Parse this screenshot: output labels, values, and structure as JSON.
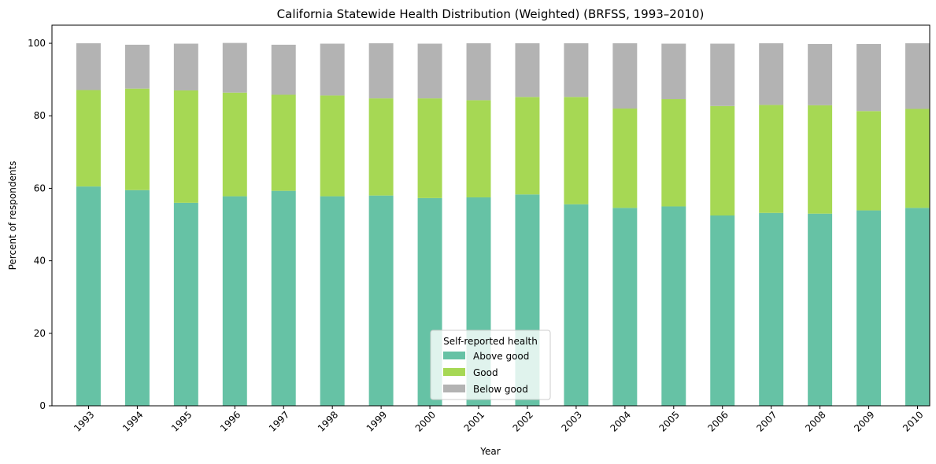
{
  "chart_data": {
    "type": "bar",
    "stacked": true,
    "title": "California Statewide Health Distribution (Weighted) (BRFSS, 1993–2010)",
    "xlabel": "Year",
    "ylabel": "Percent of respondents",
    "ylim": [
      0,
      105
    ],
    "yticks": [
      0,
      20,
      40,
      60,
      80,
      100
    ],
    "grid": false,
    "legend": {
      "title": "Self-reported health",
      "placement": "bottom-center"
    },
    "categories": [
      "1993",
      "1994",
      "1995",
      "1996",
      "1997",
      "1998",
      "1999",
      "2000",
      "2001",
      "2002",
      "2003",
      "2004",
      "2005",
      "2006",
      "2007",
      "2008",
      "2009",
      "2010"
    ],
    "series": [
      {
        "name": "Above good",
        "color": "#66c2a5",
        "values": [
          60.5,
          59.5,
          56.0,
          57.8,
          59.3,
          57.8,
          58.0,
          57.3,
          57.5,
          58.3,
          55.6,
          54.6,
          55.0,
          52.5,
          53.2,
          53.0,
          53.9,
          54.6
        ]
      },
      {
        "name": "Good",
        "color": "#a6d854",
        "values": [
          26.6,
          28.0,
          31.0,
          28.6,
          26.5,
          27.8,
          26.8,
          27.5,
          26.8,
          26.9,
          29.6,
          27.4,
          29.6,
          30.2,
          29.8,
          29.9,
          27.4,
          27.3
        ]
      },
      {
        "name": "Below good",
        "color": "#b3b3b3",
        "values": [
          12.9,
          12.1,
          12.9,
          13.7,
          13.8,
          14.3,
          15.2,
          15.1,
          15.7,
          14.8,
          14.8,
          18.0,
          15.3,
          17.2,
          17.0,
          16.9,
          18.5,
          18.1
        ]
      }
    ]
  }
}
